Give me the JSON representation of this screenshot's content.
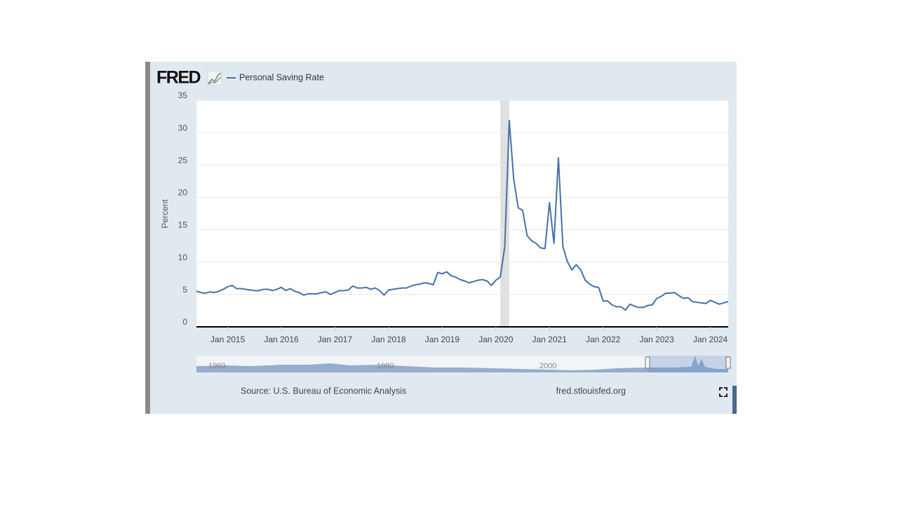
{
  "brand": "FRED",
  "chart_data": {
    "type": "line",
    "y_label": "Percent",
    "source": "Source: U.S. Bureau of Economic Analysis",
    "site": "fred.stlouisfed.org",
    "navigator_labels": [
      "1960",
      "1980",
      "2000"
    ],
    "x": [
      "2014-06",
      "2014-07",
      "2014-08",
      "2014-09",
      "2014-10",
      "2014-11",
      "2014-12",
      "2015-01",
      "2015-02",
      "2015-03",
      "2015-04",
      "2015-05",
      "2015-06",
      "2015-07",
      "2015-08",
      "2015-09",
      "2015-10",
      "2015-11",
      "2015-12",
      "2016-01",
      "2016-02",
      "2016-03",
      "2016-04",
      "2016-05",
      "2016-06",
      "2016-07",
      "2016-08",
      "2016-09",
      "2016-10",
      "2016-11",
      "2016-12",
      "2017-01",
      "2017-02",
      "2017-03",
      "2017-04",
      "2017-05",
      "2017-06",
      "2017-07",
      "2017-08",
      "2017-09",
      "2017-10",
      "2017-11",
      "2017-12",
      "2018-01",
      "2018-02",
      "2018-03",
      "2018-04",
      "2018-05",
      "2018-06",
      "2018-07",
      "2018-08",
      "2018-09",
      "2018-10",
      "2018-11",
      "2018-12",
      "2019-01",
      "2019-02",
      "2019-03",
      "2019-04",
      "2019-05",
      "2019-06",
      "2019-07",
      "2019-08",
      "2019-09",
      "2019-10",
      "2019-11",
      "2019-12",
      "2020-01",
      "2020-02",
      "2020-03",
      "2020-04",
      "2020-05",
      "2020-06",
      "2020-07",
      "2020-08",
      "2020-09",
      "2020-10",
      "2020-11",
      "2020-12",
      "2021-01",
      "2021-02",
      "2021-03",
      "2021-04",
      "2021-05",
      "2021-06",
      "2021-07",
      "2021-08",
      "2021-09",
      "2021-10",
      "2021-11",
      "2021-12",
      "2022-01",
      "2022-02",
      "2022-03",
      "2022-04",
      "2022-05",
      "2022-06",
      "2022-07",
      "2022-08",
      "2022-09",
      "2022-10",
      "2022-11",
      "2022-12",
      "2023-01",
      "2023-02",
      "2023-03",
      "2023-04",
      "2023-05",
      "2023-06",
      "2023-07",
      "2023-08",
      "2023-09",
      "2023-10",
      "2023-11",
      "2023-12",
      "2024-01",
      "2024-02",
      "2024-03",
      "2024-04",
      "2024-05"
    ],
    "series": [
      {
        "name": "Personal Saving Rate",
        "color": "#4572a7",
        "values": [
          5.5,
          5.3,
          5.2,
          5.4,
          5.3,
          5.5,
          5.8,
          6.2,
          6.4,
          5.9,
          5.9,
          5.8,
          5.7,
          5.6,
          5.6,
          5.8,
          5.8,
          5.6,
          5.8,
          6.1,
          5.6,
          5.9,
          5.5,
          5.3,
          4.9,
          5.1,
          5.1,
          5.1,
          5.3,
          5.4,
          5.0,
          5.3,
          5.6,
          5.6,
          5.7,
          6.3,
          6.0,
          6.0,
          6.1,
          5.8,
          6.0,
          5.6,
          4.9,
          5.7,
          5.8,
          5.9,
          6.0,
          6.0,
          6.3,
          6.5,
          6.6,
          6.8,
          6.7,
          6.5,
          8.4,
          8.2,
          8.5,
          7.9,
          7.7,
          7.3,
          7.1,
          6.8,
          7.0,
          7.2,
          7.3,
          7.1,
          6.4,
          7.2,
          7.7,
          12.4,
          31.9,
          22.8,
          18.4,
          18.0,
          14.1,
          13.3,
          12.9,
          12.2,
          12.1,
          19.2,
          12.9,
          26.1,
          12.4,
          10.1,
          8.8,
          9.6,
          8.8,
          7.2,
          6.6,
          6.2,
          6.1,
          4.0,
          4.0,
          3.4,
          3.1,
          3.1,
          2.6,
          3.5,
          3.2,
          3.0,
          3.0,
          3.3,
          3.4,
          4.4,
          4.7,
          5.2,
          5.2,
          5.3,
          4.8,
          4.4,
          4.5,
          3.9,
          3.8,
          3.7,
          3.6,
          4.1,
          3.8,
          3.5,
          3.7,
          3.9
        ]
      }
    ],
    "recessions": [
      {
        "start": "2020-02",
        "end": "2020-04"
      }
    ],
    "ylim": [
      0,
      35
    ],
    "yticks": [
      0,
      5,
      10,
      15,
      20,
      25,
      30,
      35
    ],
    "xticks": [
      {
        "value": "2015-01",
        "label": "Jan 2015"
      },
      {
        "value": "2016-01",
        "label": "Jan 2016"
      },
      {
        "value": "2017-01",
        "label": "Jan 2017"
      },
      {
        "value": "2018-01",
        "label": "Jan 2018"
      },
      {
        "value": "2019-01",
        "label": "Jan 2019"
      },
      {
        "value": "2020-01",
        "label": "Jan 2020"
      },
      {
        "value": "2021-01",
        "label": "Jan 2021"
      },
      {
        "value": "2022-01",
        "label": "Jan 2022"
      },
      {
        "value": "2023-01",
        "label": "Jan 2023"
      },
      {
        "value": "2024-01",
        "label": "Jan 2024"
      }
    ],
    "grid": true
  }
}
